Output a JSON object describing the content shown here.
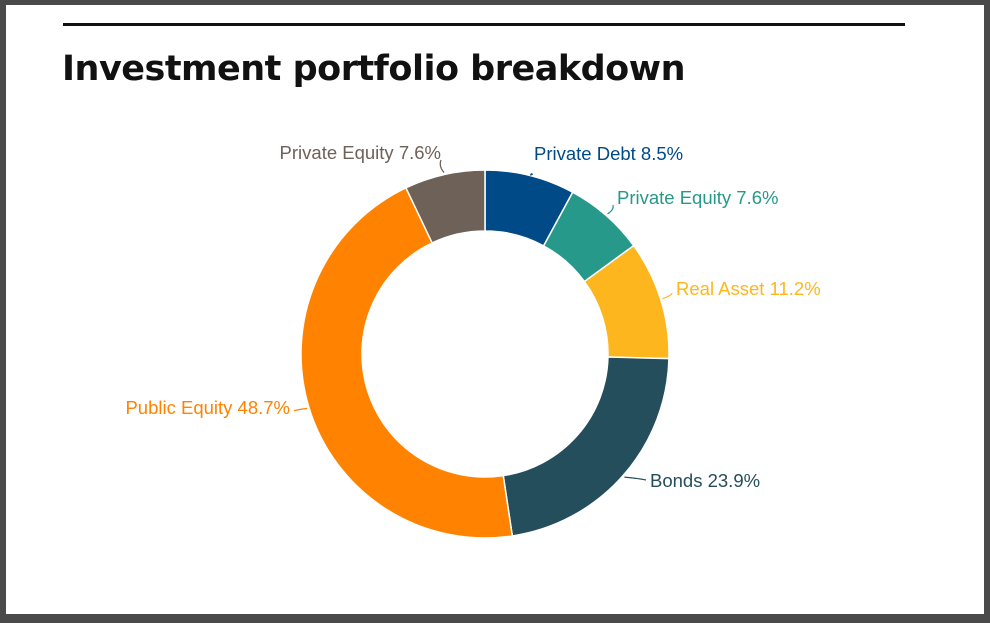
{
  "page": {
    "title": "Investment portfolio breakdown"
  },
  "chart_data": {
    "type": "pie",
    "variant": "donut",
    "title": "Investment portfolio breakdown",
    "unit": "%",
    "slices": [
      {
        "label": "Private Debt 8.5%",
        "name": "Private Debt",
        "value": 8.5,
        "color": "#004a87"
      },
      {
        "label": "Private Equity 7.6%",
        "name": "Private Equity",
        "value": 7.6,
        "color": "#26998a"
      },
      {
        "label": "Real Asset 11.2%",
        "name": "Real Asset",
        "value": 11.2,
        "color": "#fdb61e"
      },
      {
        "label": "Bonds 23.9%",
        "name": "Bonds",
        "value": 23.9,
        "color": "#244e5c"
      },
      {
        "label": "Public Equity 48.7%",
        "name": "Public Equity",
        "value": 48.7,
        "color": "#ff8300"
      },
      {
        "label": "Private Equity 7.6%",
        "name": "Private Equity",
        "value": 7.6,
        "color": "#6e6158"
      }
    ]
  }
}
